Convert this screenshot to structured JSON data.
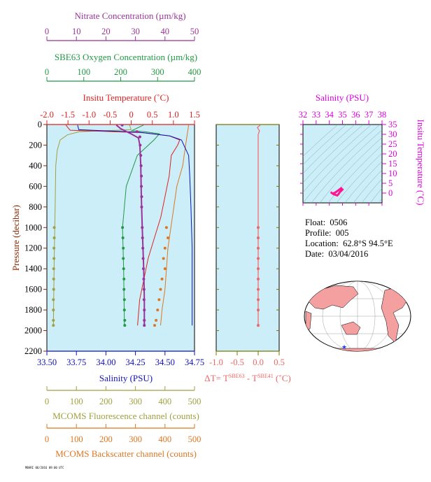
{
  "meta": {
    "float_label": "Float:",
    "float_value": "0506",
    "profile_label": "Profile:",
    "profile_value": "005",
    "location_label": "Location:",
    "location_value": "62.8°S  94.5°E",
    "date_label": "Date:",
    "date_value": "03/04/2016",
    "footnote": "MBARI 06/2016 09:00 UTC"
  },
  "colors": {
    "nitrate": "#993399",
    "oxygen": "#229944",
    "temperature": "#dd2222",
    "salinity": "#1111bb",
    "fluorescence": "#a0a040",
    "backscatter": "#dd7722",
    "delta_t": "#ee6666",
    "ts_axis": "#dd00dd",
    "plot_bg": "#cceef8"
  },
  "chart_data": [
    {
      "type": "line",
      "name": "profile",
      "ylabel": "Pressure (decibar)",
      "ylim": [
        0,
        2200
      ],
      "y_ticks": [
        0,
        200,
        400,
        600,
        800,
        1000,
        1200,
        1400,
        1600,
        1800,
        2000,
        2200
      ],
      "axes": {
        "nitrate": {
          "label": "Nitrate Concentration (µm/kg)",
          "lim": [
            0,
            50
          ],
          "ticks": [
            0,
            10,
            20,
            30,
            40,
            50
          ]
        },
        "oxygen": {
          "label": "SBE63 Oxygen Concentration (µm/kg)",
          "lim": [
            0,
            400
          ],
          "ticks": [
            0,
            100,
            200,
            300,
            400
          ]
        },
        "temperature": {
          "label": "Insitu Temperature (˚C)",
          "lim": [
            -2.0,
            1.5
          ],
          "ticks": [
            "-2.0",
            "-1.5",
            "-1.0",
            "-0.5",
            "0",
            "0.5",
            "1.0",
            "1.5"
          ]
        },
        "salinity": {
          "label": "Salinity (PSU)",
          "lim": [
            33.5,
            34.75
          ],
          "ticks": [
            "33.50",
            "33.75",
            "34.00",
            "34.25",
            "34.50",
            "34.75"
          ]
        },
        "fluorescence": {
          "label": "MCOMS Fluorescence channel (counts)",
          "lim": [
            0,
            500
          ],
          "ticks": [
            0,
            100,
            200,
            300,
            400,
            500
          ]
        },
        "backscatter": {
          "label": "MCOMS Backscatter channel (counts)",
          "lim": [
            0,
            500
          ],
          "ticks": [
            0,
            100,
            200,
            300,
            400,
            500
          ]
        }
      },
      "series": [
        {
          "key": "temperature",
          "points": [
            [
              -1.55,
              5
            ],
            [
              -1.5,
              30
            ],
            [
              -1.45,
              55
            ],
            [
              0.3,
              80
            ],
            [
              0.9,
              110
            ],
            [
              1.15,
              150
            ],
            [
              1.1,
              200
            ],
            [
              0.95,
              300
            ],
            [
              0.9,
              500
            ],
            [
              0.8,
              700
            ],
            [
              0.7,
              900
            ],
            [
              0.55,
              1100
            ],
            [
              0.4,
              1300
            ],
            [
              0.3,
              1500
            ],
            [
              0.2,
              1700
            ],
            [
              0.15,
              1950
            ]
          ]
        },
        {
          "key": "salinity",
          "points": [
            [
              33.76,
              5
            ],
            [
              33.77,
              50
            ],
            [
              34.28,
              75
            ],
            [
              34.54,
              110
            ],
            [
              34.64,
              150
            ],
            [
              34.66,
              200
            ],
            [
              34.7,
              300
            ],
            [
              34.71,
              500
            ],
            [
              34.72,
              800
            ],
            [
              34.73,
              1200
            ],
            [
              34.73,
              1950
            ]
          ]
        },
        {
          "key": "oxygen",
          "points": [
            [
              262,
              5
            ],
            [
              230,
              60
            ],
            [
              265,
              70
            ],
            [
              305,
              90
            ],
            [
              290,
              150
            ],
            [
              245,
              300
            ],
            [
              215,
              600
            ],
            [
              205,
              1000
            ],
            [
              208,
              1400
            ],
            [
              210,
              1950
            ]
          ]
        },
        {
          "key": "nitrate",
          "points": [
            [
              23.5,
              5
            ],
            [
              25,
              40
            ],
            [
              28.5,
              90
            ],
            [
              31,
              130
            ],
            [
              31.5,
              200
            ],
            [
              31.8,
              400
            ],
            [
              32,
              700
            ],
            [
              32.3,
              1000
            ],
            [
              32.8,
              1400
            ],
            [
              33,
              1700
            ],
            [
              33,
              1950
            ]
          ]
        },
        {
          "key": "fluorescence",
          "points": [
            [
              280,
              5
            ],
            [
              285,
              50
            ],
            [
              110,
              70
            ],
            [
              70,
              100
            ],
            [
              45,
              150
            ],
            [
              35,
              250
            ],
            [
              30,
              400
            ],
            [
              28,
              800
            ],
            [
              25,
              1300
            ],
            [
              22,
              1950
            ]
          ]
        },
        {
          "key": "backscatter",
          "points": [
            [
              480,
              5
            ],
            [
              470,
              200
            ],
            [
              465,
              300
            ],
            [
              460,
              400
            ],
            [
              440,
              600
            ],
            [
              430,
              800
            ],
            [
              420,
              1000
            ],
            [
              410,
              1200
            ],
            [
              405,
              1400
            ],
            [
              400,
              1600
            ],
            [
              390,
              1800
            ],
            [
              385,
              1950
            ]
          ]
        }
      ],
      "sample_points": {
        "nitrate": [
          [
            25.5,
            5
          ],
          [
            30.5,
            70
          ],
          [
            31.5,
            120
          ],
          [
            31.6,
            200
          ],
          [
            31.8,
            300
          ],
          [
            31.9,
            400
          ],
          [
            32,
            500
          ],
          [
            32,
            600
          ],
          [
            32.1,
            700
          ],
          [
            32.1,
            800
          ],
          [
            32.3,
            1000
          ],
          [
            32.4,
            1100
          ],
          [
            32.5,
            1200
          ],
          [
            32.6,
            1300
          ],
          [
            32.7,
            1400
          ],
          [
            32.8,
            1500
          ],
          [
            32.9,
            1600
          ],
          [
            32.9,
            1700
          ],
          [
            33,
            1800
          ],
          [
            33,
            1900
          ],
          [
            33,
            1950
          ]
        ],
        "oxygen": [
          [
            205,
            1000
          ],
          [
            206,
            1100
          ],
          [
            207,
            1200
          ],
          [
            207,
            1300
          ],
          [
            208,
            1400
          ],
          [
            209,
            1500
          ],
          [
            209,
            1600
          ],
          [
            210,
            1700
          ],
          [
            210,
            1800
          ],
          [
            211,
            1900
          ],
          [
            211,
            1950
          ]
        ],
        "fluorescence": [
          [
            25,
            1000
          ],
          [
            25,
            1100
          ],
          [
            24,
            1200
          ],
          [
            24,
            1300
          ],
          [
            23,
            1400
          ],
          [
            23,
            1500
          ],
          [
            23,
            1600
          ],
          [
            22,
            1700
          ],
          [
            22,
            1800
          ],
          [
            22,
            1900
          ],
          [
            22,
            1950
          ]
        ],
        "backscatter": [
          [
            405,
            1000
          ],
          [
            410,
            1100
          ],
          [
            400,
            1200
          ],
          [
            395,
            1300
          ],
          [
            400,
            1400
          ],
          [
            390,
            1500
          ],
          [
            385,
            1600
          ],
          [
            380,
            1700
          ],
          [
            375,
            1800
          ],
          [
            370,
            1900
          ],
          [
            365,
            1950
          ]
        ]
      }
    },
    {
      "type": "scatter",
      "name": "delta_t",
      "xlabel": "ΔT= T^SBE63 - T^SBE41 (˚C)",
      "xlim": [
        -1.0,
        0.5
      ],
      "x_ticks": [
        "-1.0",
        "-0.5",
        "0.0",
        "0.5"
      ],
      "ylim": [
        0,
        2200
      ],
      "line": [
        [
          0.05,
          5
        ],
        [
          -0.02,
          30
        ],
        [
          0.03,
          60
        ],
        [
          0.0,
          100
        ],
        [
          0.0,
          1950
        ]
      ],
      "points": [
        [
          0,
          1000
        ],
        [
          0,
          1100
        ],
        [
          0,
          1200
        ],
        [
          0,
          1300
        ],
        [
          0,
          1400
        ],
        [
          0,
          1500
        ],
        [
          0,
          1600
        ],
        [
          0,
          1700
        ],
        [
          0,
          1800
        ],
        [
          0,
          1950
        ]
      ]
    },
    {
      "type": "line",
      "name": "ts_diagram",
      "xlabel": "Salinity (PSU)",
      "ylabel": "Insitu Temperature (˚C)",
      "xlim": [
        32,
        38
      ],
      "ylim": [
        -5,
        35
      ],
      "x_ticks": [
        32,
        33,
        34,
        35,
        36,
        37,
        38
      ],
      "y_ticks": [
        0,
        5,
        10,
        15,
        20,
        25,
        30,
        35
      ],
      "points": [
        [
          34.1,
          0.5
        ],
        [
          34.3,
          -0.5
        ],
        [
          34.6,
          -1.2
        ],
        [
          34.7,
          -0.5
        ],
        [
          34.8,
          0.5
        ],
        [
          35.0,
          1.8
        ],
        [
          34.9,
          2.5
        ],
        [
          34.7,
          1.5
        ],
        [
          34.5,
          0.5
        ],
        [
          34.3,
          -0.2
        ]
      ]
    }
  ],
  "map": {
    "marker_label": "float position"
  }
}
